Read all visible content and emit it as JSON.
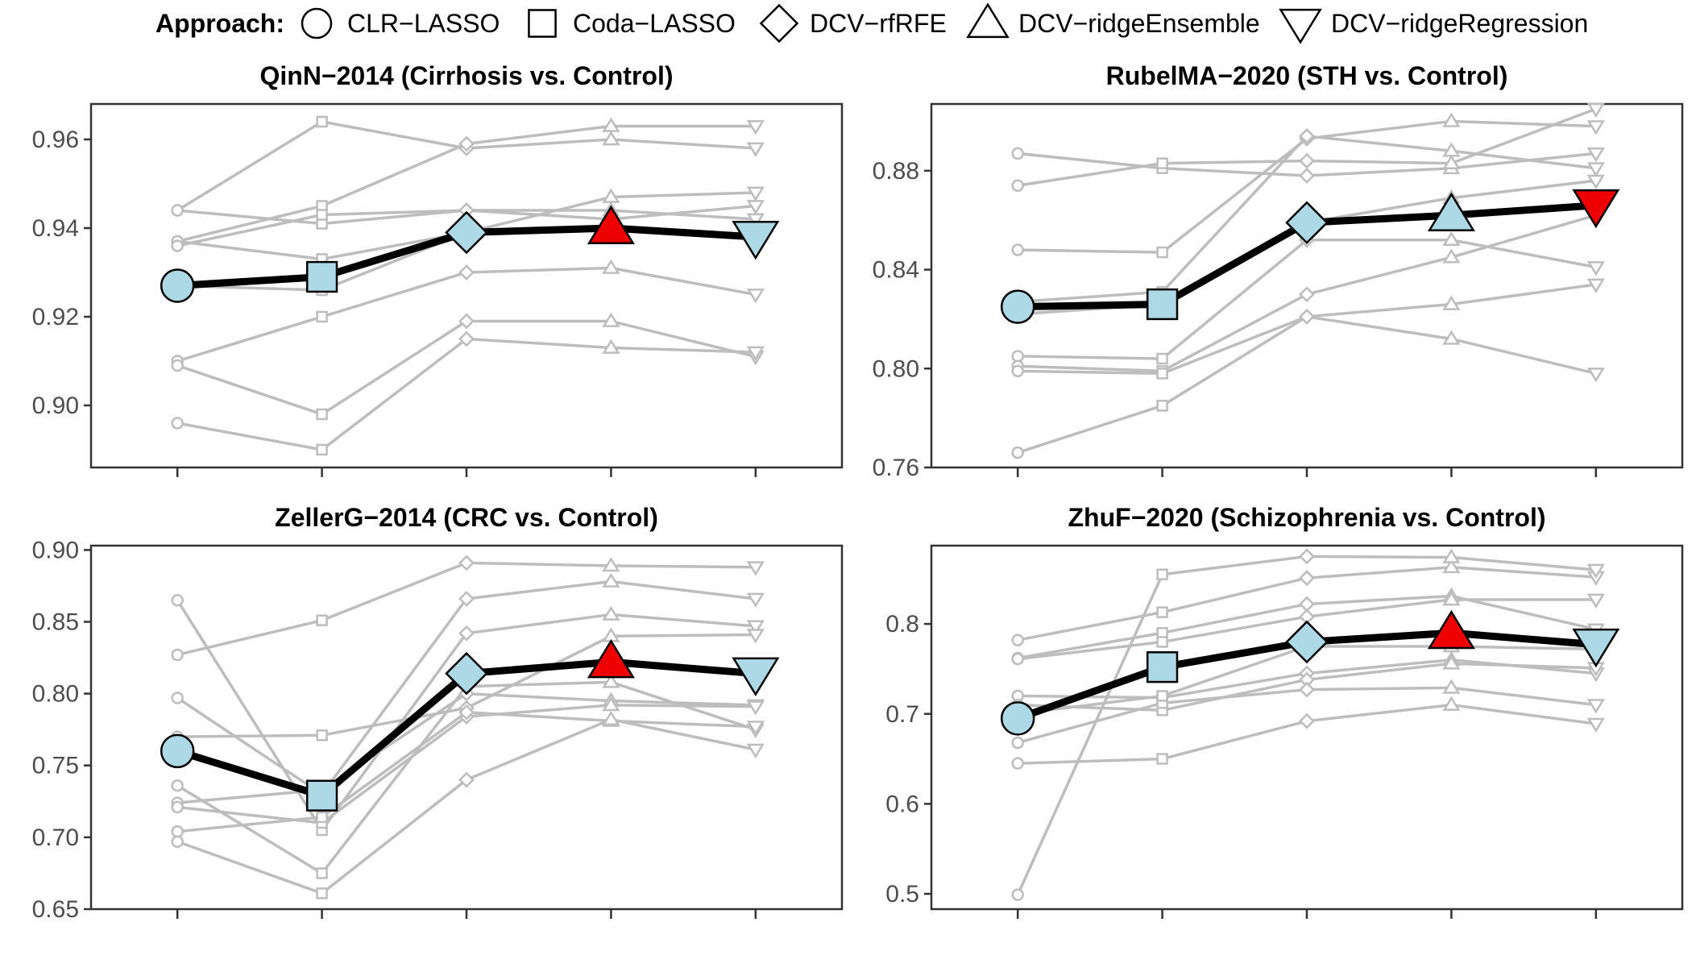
{
  "legend": {
    "title": "Approach:",
    "items": [
      {
        "label": "CLR−LASSO",
        "shape": "circle"
      },
      {
        "label": "Coda−LASSO",
        "shape": "square"
      },
      {
        "label": "DCV−rfRFE",
        "shape": "diamond"
      },
      {
        "label": "DCV−ridgeEnsemble",
        "shape": "triangle-up"
      },
      {
        "label": "DCV−ridgeRegression",
        "shape": "triangle-down"
      }
    ]
  },
  "colors": {
    "best": "#ee0000",
    "main": "#add8e6",
    "reference": "#bdbdbd",
    "main_line": "#000000"
  },
  "chart_data": [
    {
      "type": "line",
      "title": "QinN−2014 (Cirrhosis vs. Control)",
      "ylim": [
        0.886,
        0.968
      ],
      "yticks": [
        0.9,
        0.92,
        0.94,
        0.96
      ],
      "ytick_labels": [
        "0.90",
        "0.92",
        "0.94",
        "0.96"
      ],
      "categories": [
        "CLR−LASSO",
        "Coda−LASSO",
        "DCV−rfRFE",
        "DCV−ridgeEnsemble",
        "DCV−ridgeRegression"
      ],
      "main_series": {
        "values": [
          0.927,
          0.929,
          0.939,
          0.94,
          0.938
        ],
        "best_index": 3
      },
      "reference_series": [
        [
          0.944,
          0.941,
          0.944,
          0.944,
          0.942
        ],
        [
          0.944,
          0.964,
          0.958,
          0.96,
          0.958
        ],
        [
          0.937,
          0.945,
          0.959,
          0.963,
          0.963
        ],
        [
          0.937,
          0.933,
          0.939,
          0.947,
          0.948
        ],
        [
          0.936,
          0.943,
          0.944,
          0.942,
          0.945
        ],
        [
          0.927,
          0.926,
          0.939,
          0.94,
          0.938
        ],
        [
          0.91,
          0.92,
          0.93,
          0.931,
          0.925
        ],
        [
          0.909,
          0.898,
          0.919,
          0.919,
          0.911
        ],
        [
          0.896,
          0.89,
          0.915,
          0.913,
          0.912
        ]
      ]
    },
    {
      "type": "line",
      "title": "RubelMA−2020 (STH vs. Control)",
      "ylim": [
        0.76,
        0.907
      ],
      "yticks": [
        0.76,
        0.8,
        0.84,
        0.88
      ],
      "ytick_labels": [
        "0.76",
        "0.80",
        "0.84",
        "0.88"
      ],
      "categories": [
        "CLR−LASSO",
        "Coda−LASSO",
        "DCV−rfRFE",
        "DCV−ridgeEnsemble",
        "DCV−ridgeRegression"
      ],
      "main_series": {
        "values": [
          0.825,
          0.826,
          0.859,
          0.862,
          0.866
        ],
        "best_index": 4
      },
      "reference_series": [
        [
          0.887,
          0.881,
          0.878,
          0.881,
          0.887
        ],
        [
          0.874,
          0.883,
          0.884,
          0.883,
          0.905
        ],
        [
          0.848,
          0.847,
          0.893,
          0.9,
          0.898
        ],
        [
          0.827,
          0.831,
          0.894,
          0.888,
          0.881
        ],
        [
          0.822,
          0.826,
          0.859,
          0.869,
          0.876
        ],
        [
          0.805,
          0.804,
          0.852,
          0.852,
          0.841
        ],
        [
          0.801,
          0.799,
          0.83,
          0.845,
          0.862
        ],
        [
          0.799,
          0.798,
          0.821,
          0.826,
          0.834
        ],
        [
          0.766,
          0.785,
          0.821,
          0.812,
          0.798
        ]
      ]
    },
    {
      "type": "line",
      "title": "ZellerG−2014 (CRC vs. Control)",
      "ylim": [
        0.65,
        0.903
      ],
      "yticks": [
        0.65,
        0.7,
        0.75,
        0.8,
        0.85,
        0.9
      ],
      "ytick_labels": [
        "0.65",
        "0.70",
        "0.75",
        "0.80",
        "0.85",
        "0.90"
      ],
      "categories": [
        "CLR−LASSO",
        "Coda−LASSO",
        "DCV−rfRFE",
        "DCV−ridgeEnsemble",
        "DCV−ridgeRegression"
      ],
      "main_series": {
        "values": [
          0.76,
          0.729,
          0.814,
          0.822,
          0.814
        ],
        "best_index": 3
      },
      "reference_series": [
        [
          0.865,
          0.705,
          0.842,
          0.855,
          0.847
        ],
        [
          0.827,
          0.851,
          0.891,
          0.889,
          0.888
        ],
        [
          0.797,
          0.73,
          0.866,
          0.878,
          0.866
        ],
        [
          0.77,
          0.771,
          0.79,
          0.84,
          0.841
        ],
        [
          0.736,
          0.675,
          0.805,
          0.808,
          0.775
        ],
        [
          0.724,
          0.733,
          0.8,
          0.795,
          0.792
        ],
        [
          0.721,
          0.71,
          0.784,
          0.792,
          0.791
        ],
        [
          0.704,
          0.714,
          0.787,
          0.781,
          0.777
        ],
        [
          0.697,
          0.661,
          0.74,
          0.782,
          0.761
        ]
      ]
    },
    {
      "type": "line",
      "title": "ZhuF−2020 (Schizophrenia vs. Control)",
      "ylim": [
        0.483,
        0.887
      ],
      "yticks": [
        0.5,
        0.6,
        0.7,
        0.8
      ],
      "ytick_labels": [
        "0.5",
        "0.6",
        "0.7",
        "0.8"
      ],
      "categories": [
        "CLR−LASSO",
        "Coda−LASSO",
        "DCV−rfRFE",
        "DCV−ridgeEnsemble",
        "DCV−ridgeRegression"
      ],
      "main_series": {
        "values": [
          0.695,
          0.752,
          0.78,
          0.79,
          0.777
        ],
        "best_index": 3
      },
      "reference_series": [
        [
          0.782,
          0.813,
          0.851,
          0.863,
          0.852
        ],
        [
          0.762,
          0.79,
          0.822,
          0.831,
          0.794
        ],
        [
          0.761,
          0.78,
          0.808,
          0.827,
          0.827
        ],
        [
          0.72,
          0.718,
          0.745,
          0.76,
          0.745
        ],
        [
          0.71,
          0.704,
          0.738,
          0.756,
          0.751
        ],
        [
          0.668,
          0.712,
          0.727,
          0.729,
          0.71
        ],
        [
          0.645,
          0.65,
          0.692,
          0.71,
          0.689
        ],
        [
          0.499,
          0.855,
          0.875,
          0.874,
          0.86
        ],
        [
          0.7,
          0.72,
          0.775,
          0.775,
          0.772
        ]
      ]
    }
  ]
}
